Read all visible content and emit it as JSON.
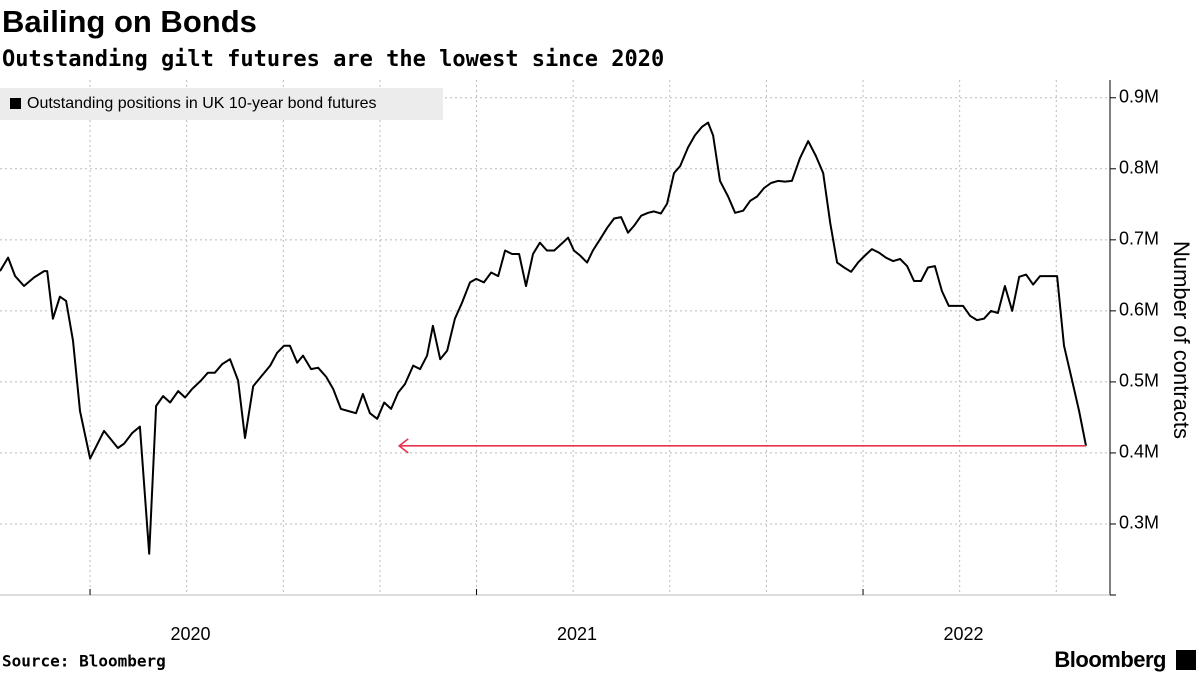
{
  "chart_data": {
    "type": "line",
    "title": "Bailing on Bonds",
    "subtitle": "Outstanding gilt futures are the lowest since 2020",
    "source": "Source: Bloomberg",
    "logo": "Bloomberg",
    "y_axis_label": "Number of contracts",
    "legend": "top-left",
    "grid": true,
    "xlim": [
      2019.767,
      2022.639
    ],
    "xticks": [
      2020,
      2021,
      2022
    ],
    "xgrid": [
      2020.25,
      2020.5,
      2020.75,
      2021.25,
      2021.5,
      2021.75,
      2022.25,
      2022.5
    ],
    "ylim": [
      200000,
      925000
    ],
    "yticks": [
      {
        "value": 300000,
        "label": "0.3M"
      },
      {
        "value": 400000,
        "label": "0.4M"
      },
      {
        "value": 500000,
        "label": "0.5M"
      },
      {
        "value": 600000,
        "label": "0.6M"
      },
      {
        "value": 700000,
        "label": "0.7M"
      },
      {
        "value": 800000,
        "label": "0.8M"
      },
      {
        "value": 900000,
        "label": "0.9M"
      }
    ],
    "x": [
      2019.767,
      2019.788,
      2019.806,
      2019.829,
      2019.855,
      2019.881,
      2019.889,
      2019.904,
      2019.922,
      2019.938,
      2019.956,
      2019.974,
      2020.0,
      2020.036,
      2020.072,
      2020.088,
      2020.109,
      2020.129,
      2020.153,
      2020.171,
      2020.189,
      2020.207,
      2020.228,
      2020.246,
      2020.264,
      2020.287,
      2020.305,
      2020.323,
      2020.342,
      2020.362,
      2020.383,
      2020.401,
      2020.422,
      2020.445,
      2020.466,
      2020.484,
      2020.502,
      2020.517,
      2020.536,
      2020.551,
      2020.572,
      2020.59,
      2020.611,
      2020.629,
      2020.649,
      2020.668,
      2020.688,
      2020.706,
      2020.724,
      2020.743,
      2020.761,
      2020.779,
      2020.797,
      2020.815,
      2020.836,
      2020.854,
      2020.872,
      2020.887,
      2020.906,
      2020.924,
      2020.944,
      2020.962,
      2020.983,
      2020.999,
      2021.019,
      2021.038,
      2021.056,
      2021.074,
      2021.092,
      2021.11,
      2021.128,
      2021.146,
      2021.164,
      2021.182,
      2021.201,
      2021.219,
      2021.237,
      2021.252,
      2021.268,
      2021.286,
      2021.301,
      2021.32,
      2021.338,
      2021.356,
      2021.374,
      2021.392,
      2021.408,
      2021.426,
      2021.444,
      2021.459,
      2021.477,
      2021.493,
      2021.511,
      2021.527,
      2021.547,
      2021.565,
      2021.583,
      2021.599,
      2021.612,
      2021.63,
      2021.651,
      2021.669,
      2021.69,
      2021.708,
      2021.726,
      2021.744,
      2021.762,
      2021.78,
      2021.798,
      2021.816,
      2021.837,
      2021.858,
      2021.878,
      2021.897,
      2021.915,
      2021.933,
      2021.951,
      2021.969,
      2021.987,
      2022.005,
      2022.023,
      2022.041,
      2022.059,
      2022.078,
      2022.096,
      2022.114,
      2022.132,
      2022.15,
      2022.168,
      2022.186,
      2022.204,
      2022.222,
      2022.241,
      2022.259,
      2022.277,
      2022.295,
      2022.313,
      2022.331,
      2022.349,
      2022.367,
      2022.386,
      2022.404,
      2022.422,
      2022.44,
      2022.458,
      2022.502,
      2022.52,
      2022.541,
      2022.559,
      2022.577
    ],
    "series": [
      {
        "name": "Outstanding positions in UK 10-year bond futures",
        "color": "#000000",
        "values": [
          656000,
          675000,
          649000,
          635000,
          647000,
          656000,
          656000,
          589000,
          620000,
          614000,
          558000,
          459000,
          392000,
          431000,
          407000,
          413000,
          428000,
          437000,
          258000,
          466000,
          480000,
          471000,
          487000,
          478000,
          490000,
          502000,
          513000,
          513000,
          525000,
          532000,
          502000,
          421000,
          494000,
          509000,
          523000,
          541000,
          551000,
          551000,
          527000,
          537000,
          518000,
          520000,
          507000,
          490000,
          462000,
          459000,
          456000,
          483000,
          456000,
          448000,
          471000,
          462000,
          485000,
          497000,
          523000,
          518000,
          537000,
          579000,
          532000,
          544000,
          589000,
          611000,
          640000,
          645000,
          640000,
          654000,
          649000,
          685000,
          680000,
          680000,
          635000,
          680000,
          696000,
          685000,
          685000,
          694000,
          703000,
          685000,
          678000,
          668000,
          685000,
          701000,
          717000,
          730000,
          732000,
          710000,
          720000,
          734000,
          738000,
          740000,
          737000,
          751000,
          794000,
          804000,
          830000,
          847000,
          859000,
          865000,
          847000,
          783000,
          761000,
          738000,
          741000,
          755000,
          761000,
          773000,
          780000,
          783000,
          782000,
          783000,
          815000,
          839000,
          818000,
          794000,
          724000,
          668000,
          661000,
          655000,
          668000,
          678000,
          687000,
          682000,
          675000,
          670000,
          673000,
          663000,
          642000,
          642000,
          661000,
          663000,
          628000,
          607000,
          607000,
          607000,
          593000,
          587000,
          589000,
          600000,
          597000,
          635000,
          600000,
          648000,
          651000,
          637000,
          649000,
          649000,
          551000,
          502000,
          459000,
          410000
        ]
      }
    ]
  }
}
